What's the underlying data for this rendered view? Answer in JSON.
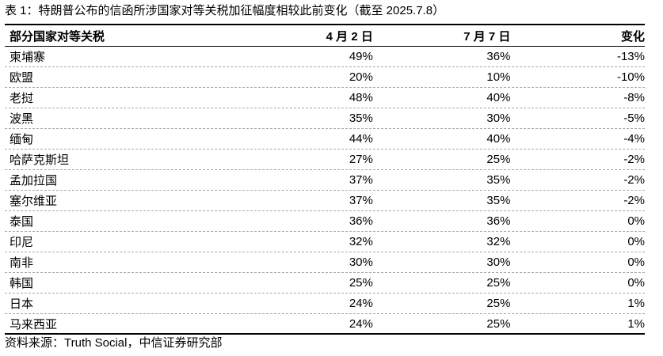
{
  "caption": "表 1：特朗普公布的信函所涉国家对等关税加征幅度相较此前变化（截至 2025.7.8）",
  "table": {
    "headers": {
      "country": "部分国家对等关税",
      "apr": "4 月 2 日",
      "jul": "7 月 7 日",
      "change": "变化"
    },
    "rows": [
      {
        "country": "柬埔寨",
        "apr": "49%",
        "jul": "36%",
        "change": "-13%"
      },
      {
        "country": "欧盟",
        "apr": "20%",
        "jul": "10%",
        "change": "-10%"
      },
      {
        "country": "老挝",
        "apr": "48%",
        "jul": "40%",
        "change": "-8%"
      },
      {
        "country": "波黑",
        "apr": "35%",
        "jul": "30%",
        "change": "-5%"
      },
      {
        "country": "缅甸",
        "apr": "44%",
        "jul": "40%",
        "change": "-4%"
      },
      {
        "country": "哈萨克斯坦",
        "apr": "27%",
        "jul": "25%",
        "change": "-2%"
      },
      {
        "country": "孟加拉国",
        "apr": "37%",
        "jul": "35%",
        "change": "-2%"
      },
      {
        "country": "塞尔维亚",
        "apr": "37%",
        "jul": "35%",
        "change": "-2%"
      },
      {
        "country": "泰国",
        "apr": "36%",
        "jul": "36%",
        "change": "0%"
      },
      {
        "country": "印尼",
        "apr": "32%",
        "jul": "32%",
        "change": "0%"
      },
      {
        "country": "南非",
        "apr": "30%",
        "jul": "30%",
        "change": "0%"
      },
      {
        "country": "韩国",
        "apr": "25%",
        "jul": "25%",
        "change": "0%"
      },
      {
        "country": "日本",
        "apr": "24%",
        "jul": "25%",
        "change": "1%"
      },
      {
        "country": "马来西亚",
        "apr": "24%",
        "jul": "25%",
        "change": "1%"
      }
    ]
  },
  "source": "资料来源：Truth Social，中信证券研究部"
}
